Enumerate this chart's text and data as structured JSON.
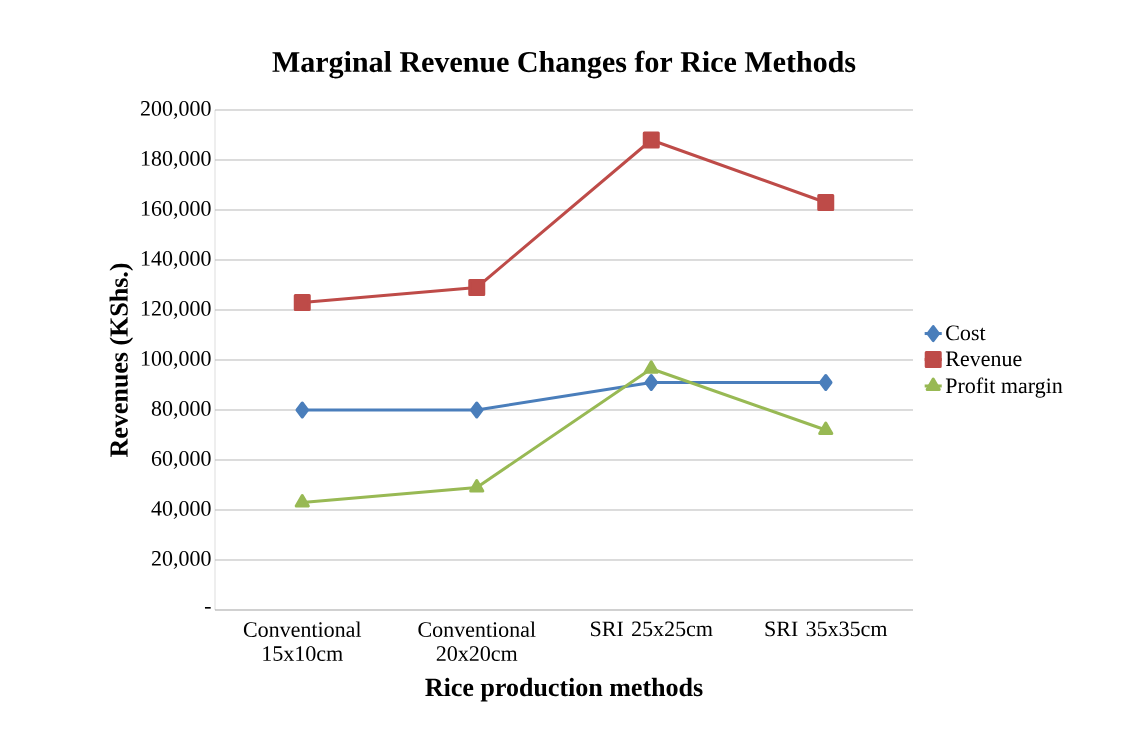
{
  "chart_data": {
    "type": "line",
    "title": "Marginal Revenue Changes for Rice Methods",
    "xlabel": "Rice production methods",
    "ylabel": "Revenues (KShs.)",
    "categories": [
      "Conventional 15x10cm",
      "Conventional 20x20cm",
      "SRI 25x25cm",
      "SRI 35x35cm"
    ],
    "series": [
      {
        "name": "Cost",
        "color": "#4a7ebb",
        "marker": "diamond",
        "values": [
          80000,
          80000,
          91000,
          91000
        ]
      },
      {
        "name": "Revenue",
        "color": "#be4b48",
        "marker": "square",
        "values": [
          123000,
          129000,
          188000,
          163000
        ]
      },
      {
        "name": "Profit margin",
        "color": "#98b954",
        "marker": "triangle",
        "values": [
          43000,
          49000,
          96500,
          72000
        ]
      }
    ],
    "ylim": [
      0,
      200000
    ],
    "yticks": [
      {
        "value": 0,
        "label": "-"
      },
      {
        "value": 20000,
        "label": "20,000"
      },
      {
        "value": 40000,
        "label": "40,000"
      },
      {
        "value": 60000,
        "label": "60,000"
      },
      {
        "value": 80000,
        "label": "80,000"
      },
      {
        "value": 100000,
        "label": "100,000"
      },
      {
        "value": 120000,
        "label": "120,000"
      },
      {
        "value": 140000,
        "label": "140,000"
      },
      {
        "value": 160000,
        "label": "160,000"
      },
      {
        "value": 180000,
        "label": "180,000"
      },
      {
        "value": 200000,
        "label": "200,000"
      }
    ],
    "grid": "y",
    "legend": "right"
  }
}
